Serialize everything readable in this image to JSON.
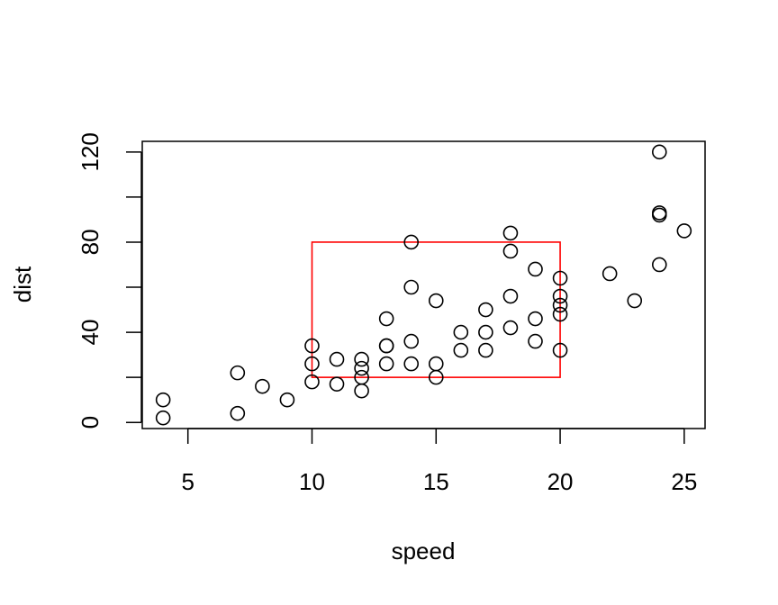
{
  "chart_data": {
    "type": "scatter",
    "xlabel": "speed",
    "ylabel": "dist",
    "xlim": [
      3.16,
      25.84
    ],
    "ylim": [
      -2.72,
      124.72
    ],
    "x_ticks": [
      5,
      10,
      15,
      20,
      25
    ],
    "y_ticks": [
      0,
      20,
      40,
      60,
      80,
      100,
      120
    ],
    "y_tick_labels": [
      0,
      40,
      80,
      120
    ],
    "grid": false,
    "legend": "none",
    "point_color": "#000000",
    "points": [
      {
        "x": 4,
        "y": 2
      },
      {
        "x": 4,
        "y": 10
      },
      {
        "x": 7,
        "y": 4
      },
      {
        "x": 7,
        "y": 22
      },
      {
        "x": 8,
        "y": 16
      },
      {
        "x": 9,
        "y": 10
      },
      {
        "x": 10,
        "y": 18
      },
      {
        "x": 10,
        "y": 26
      },
      {
        "x": 10,
        "y": 34
      },
      {
        "x": 11,
        "y": 17
      },
      {
        "x": 11,
        "y": 28
      },
      {
        "x": 12,
        "y": 14
      },
      {
        "x": 12,
        "y": 20
      },
      {
        "x": 12,
        "y": 24
      },
      {
        "x": 12,
        "y": 28
      },
      {
        "x": 13,
        "y": 26
      },
      {
        "x": 13,
        "y": 34
      },
      {
        "x": 13,
        "y": 34
      },
      {
        "x": 13,
        "y": 46
      },
      {
        "x": 14,
        "y": 26
      },
      {
        "x": 14,
        "y": 36
      },
      {
        "x": 14,
        "y": 60
      },
      {
        "x": 14,
        "y": 80
      },
      {
        "x": 15,
        "y": 20
      },
      {
        "x": 15,
        "y": 26
      },
      {
        "x": 15,
        "y": 54
      },
      {
        "x": 16,
        "y": 32
      },
      {
        "x": 16,
        "y": 40
      },
      {
        "x": 17,
        "y": 32
      },
      {
        "x": 17,
        "y": 40
      },
      {
        "x": 17,
        "y": 50
      },
      {
        "x": 18,
        "y": 42
      },
      {
        "x": 18,
        "y": 56
      },
      {
        "x": 18,
        "y": 76
      },
      {
        "x": 18,
        "y": 84
      },
      {
        "x": 19,
        "y": 36
      },
      {
        "x": 19,
        "y": 46
      },
      {
        "x": 19,
        "y": 68
      },
      {
        "x": 20,
        "y": 32
      },
      {
        "x": 20,
        "y": 48
      },
      {
        "x": 20,
        "y": 52
      },
      {
        "x": 20,
        "y": 56
      },
      {
        "x": 20,
        "y": 64
      },
      {
        "x": 22,
        "y": 66
      },
      {
        "x": 23,
        "y": 54
      },
      {
        "x": 24,
        "y": 70
      },
      {
        "x": 24,
        "y": 92
      },
      {
        "x": 24,
        "y": 93
      },
      {
        "x": 24,
        "y": 120
      },
      {
        "x": 25,
        "y": 85
      }
    ],
    "annotations": [
      {
        "type": "rect",
        "xmin": 10,
        "xmax": 20,
        "ymin": 20,
        "ymax": 80,
        "color": "#ff0000"
      }
    ]
  }
}
